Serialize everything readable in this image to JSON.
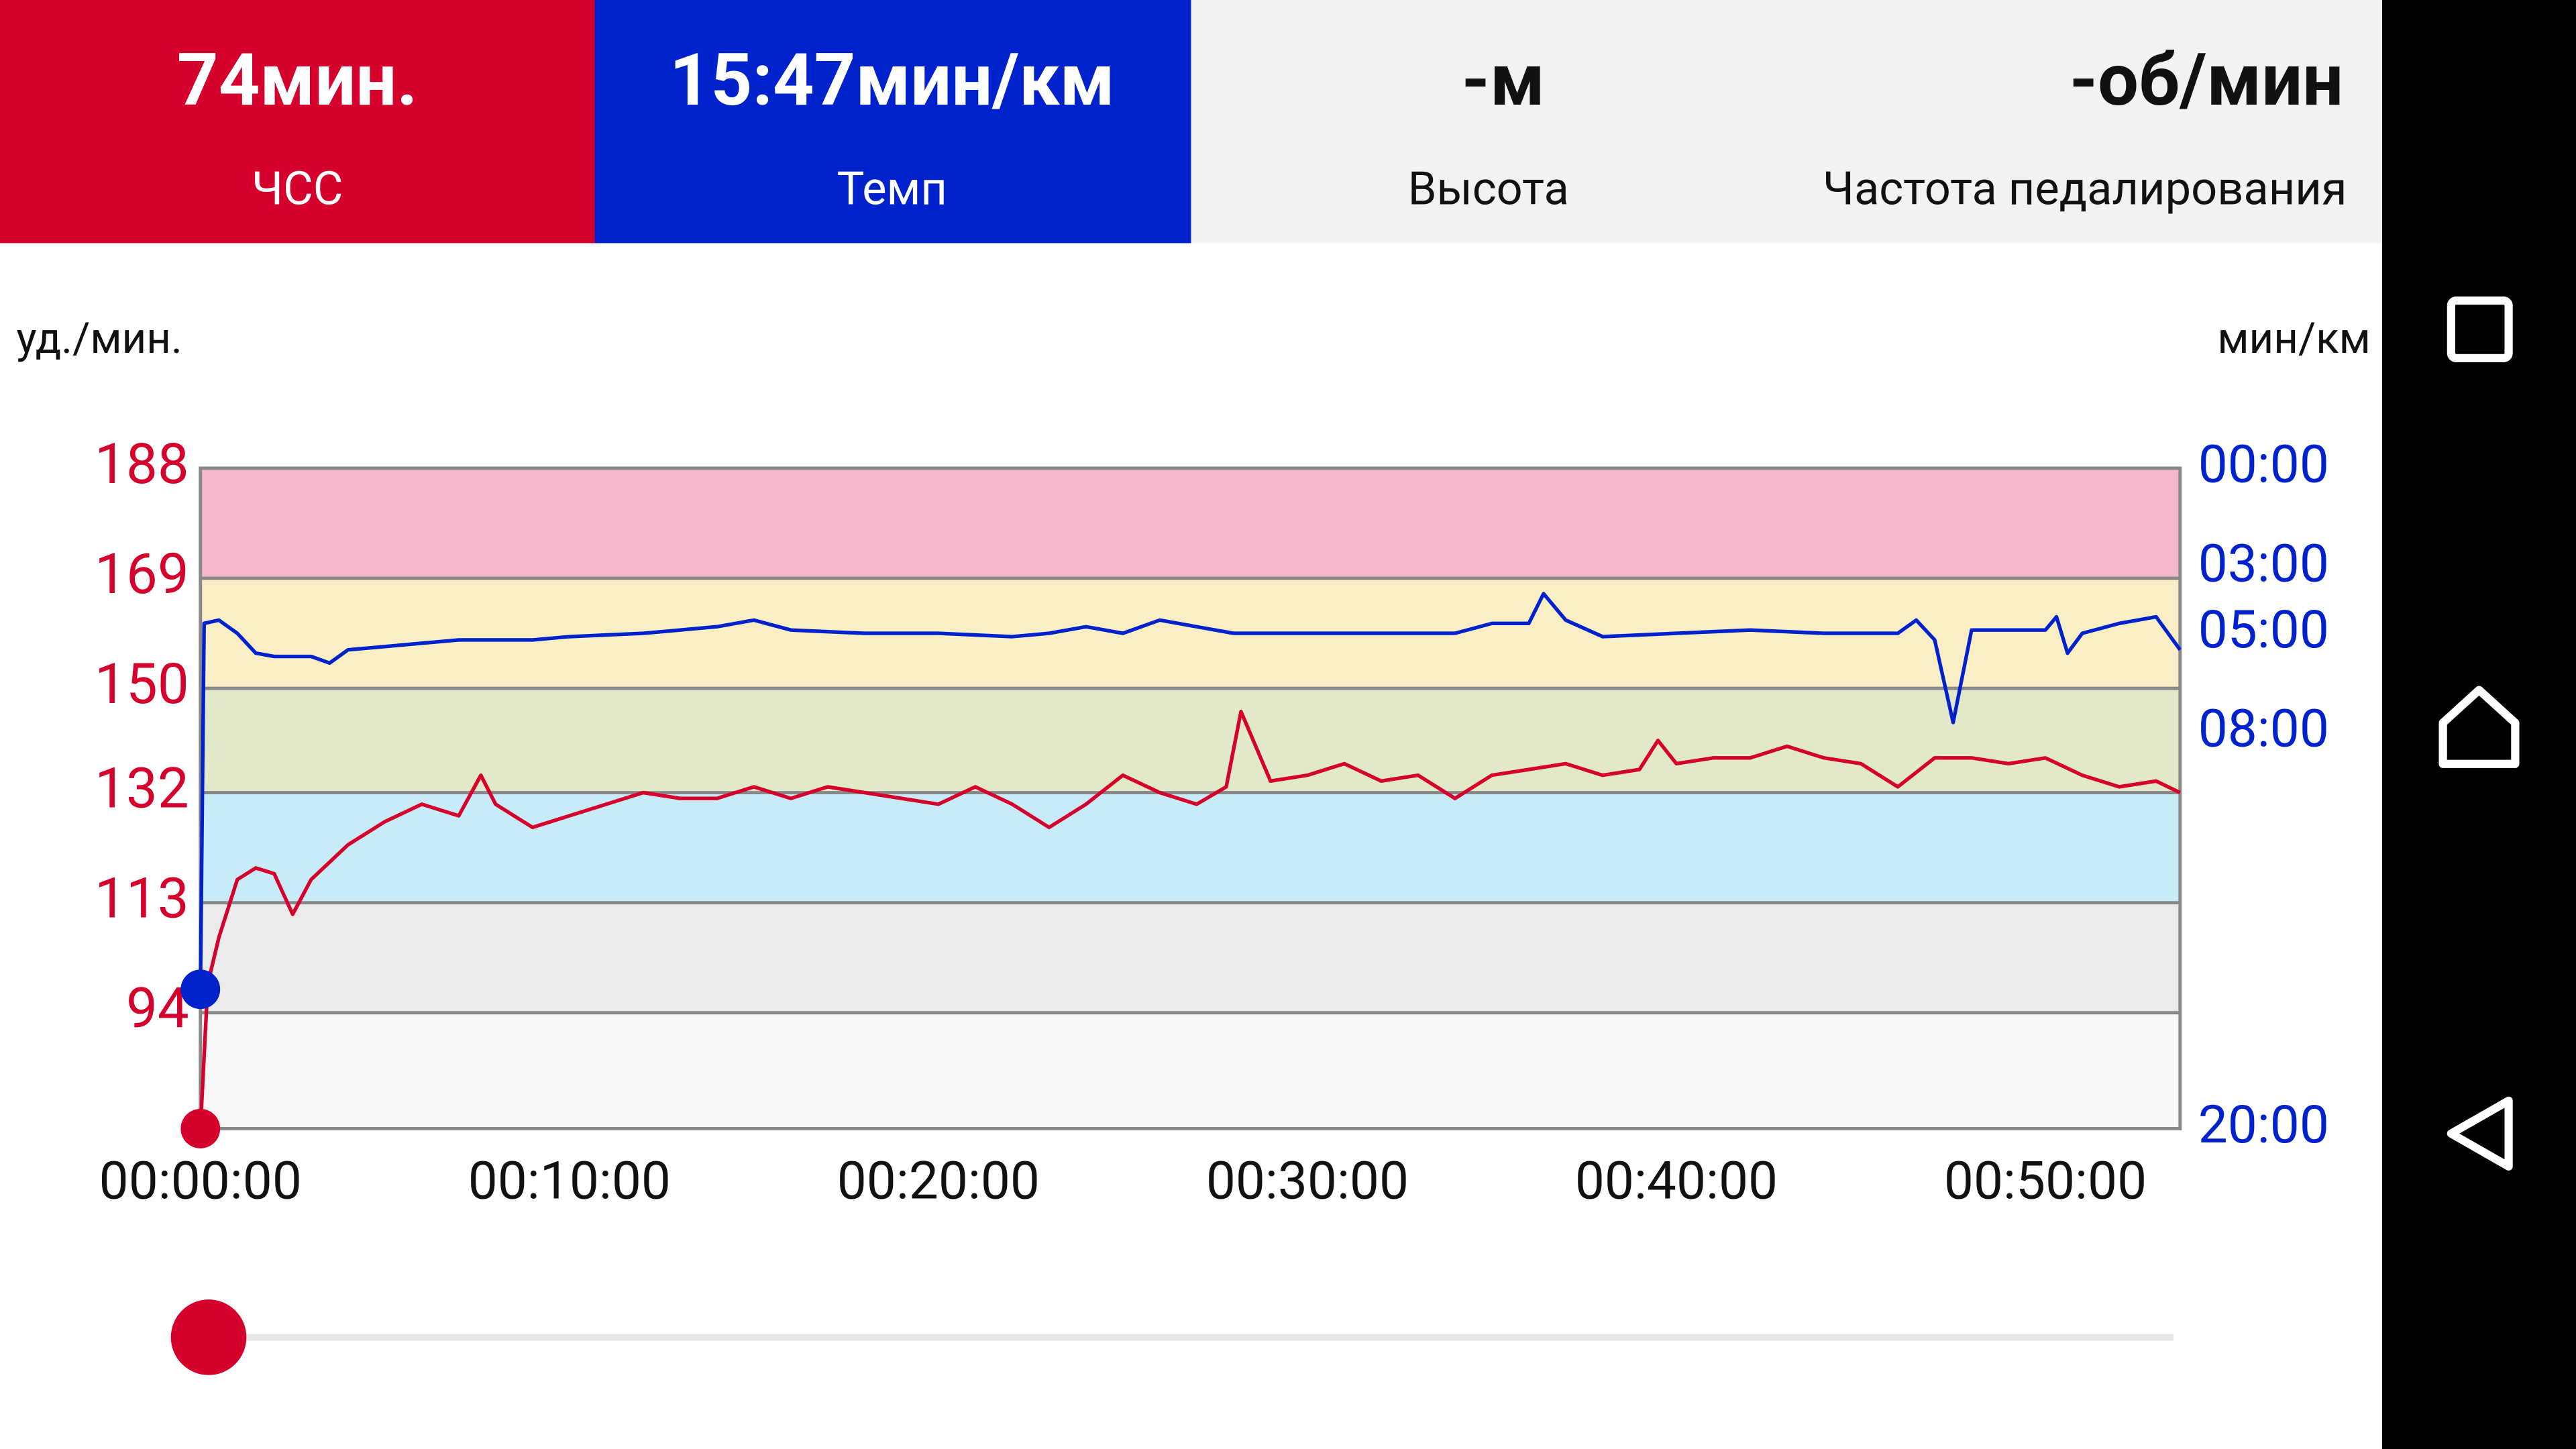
{
  "header": {
    "tiles": [
      {
        "value": "74мин.",
        "label": "ЧСС",
        "color": "#d5002b",
        "text_color": "#ffffff"
      },
      {
        "value": "15:47мин/км",
        "label": "Темп",
        "color": "#0022cc",
        "text_color": "#ffffff"
      },
      {
        "value": "-м",
        "label": "Высота",
        "color": "#f2f2f2",
        "text_color": "#111111"
      },
      {
        "value": "-об/мин",
        "label": "Частота педалирования",
        "color": "#f2f2f2",
        "text_color": "#111111"
      }
    ]
  },
  "chart_data": {
    "type": "line",
    "y_label": "уд./мин.",
    "y2_label": "мин/км",
    "xlim": [
      0,
      53.65
    ],
    "xticks": [
      {
        "value": 0,
        "label": "00:00:00"
      },
      {
        "value": 10,
        "label": "00:10:00"
      },
      {
        "value": 20,
        "label": "00:20:00"
      },
      {
        "value": 30,
        "label": "00:30:00"
      },
      {
        "value": 40,
        "label": "00:40:00"
      },
      {
        "value": 50,
        "label": "00:50:00"
      }
    ],
    "ylim": [
      74,
      188
    ],
    "yticks": [
      94,
      113,
      132,
      150,
      169,
      188
    ],
    "y2lim": [
      20,
      0
    ],
    "y2ticks": [
      {
        "value": 0,
        "label": "00:00"
      },
      {
        "value": 3,
        "label": "03:00"
      },
      {
        "value": 5,
        "label": "05:00"
      },
      {
        "value": 8,
        "label": "08:00"
      },
      {
        "value": 20,
        "label": "20:00"
      }
    ],
    "zones": [
      {
        "from": 74,
        "to": 94,
        "color": "#f7f7f7"
      },
      {
        "from": 94,
        "to": 113,
        "color": "#ebebeb"
      },
      {
        "from": 113,
        "to": 132,
        "color": "#c8ecf7"
      },
      {
        "from": 132,
        "to": 150,
        "color": "#e2e9c8"
      },
      {
        "from": 150,
        "to": 169,
        "color": "#faeec4"
      },
      {
        "from": 169,
        "to": 188,
        "color": "#f4b7cc"
      }
    ],
    "grid": true,
    "series": [
      {
        "name": "ЧСС",
        "color": "#d5002b",
        "axis": "y",
        "x": [
          0,
          0.2,
          0.5,
          1,
          1.5,
          2,
          2.5,
          3,
          4,
          5,
          6,
          7,
          7.6,
          8,
          9,
          10,
          11,
          12,
          13,
          14,
          15,
          16,
          17,
          18,
          19,
          20,
          21,
          22,
          23,
          24,
          25,
          26,
          27,
          27.8,
          28.2,
          29,
          30,
          31,
          32,
          33,
          34,
          35,
          36,
          37,
          38,
          39,
          39.5,
          40,
          41,
          42,
          43,
          44,
          45,
          46,
          47,
          48,
          49,
          50,
          51,
          52,
          53,
          53.65
        ],
        "values": [
          74,
          99,
          107,
          117,
          119,
          118,
          111,
          117,
          123,
          127,
          130,
          128,
          135,
          130,
          126,
          128,
          130,
          132,
          131,
          131,
          133,
          131,
          133,
          132,
          131,
          130,
          133,
          130,
          126,
          130,
          135,
          132,
          130,
          133,
          146,
          134,
          135,
          137,
          134,
          135,
          131,
          135,
          136,
          137,
          135,
          136,
          141,
          137,
          138,
          138,
          140,
          138,
          137,
          133,
          138,
          138,
          137,
          138,
          135,
          133,
          134,
          132
        ]
      },
      {
        "name": "Темп",
        "color": "#0022cc",
        "axis": "y2",
        "x": [
          0,
          0.1,
          0.5,
          1,
          1.5,
          2,
          3,
          3.5,
          4,
          5,
          6,
          7,
          8,
          9,
          10,
          12,
          13,
          14,
          15,
          16,
          18,
          20,
          22,
          23,
          24,
          25,
          26,
          27,
          28,
          30,
          32,
          34,
          35,
          36,
          36.4,
          37,
          38,
          40,
          42,
          44,
          46,
          46.5,
          47,
          47.5,
          48,
          49,
          50,
          50.3,
          50.6,
          51,
          52,
          53,
          53.65
        ],
        "values": [
          15.78,
          4.7,
          4.6,
          5.0,
          5.6,
          5.7,
          5.7,
          5.9,
          5.5,
          5.4,
          5.3,
          5.2,
          5.2,
          5.2,
          5.1,
          5.0,
          4.9,
          4.8,
          4.6,
          4.9,
          5.0,
          5.0,
          5.1,
          5.0,
          4.8,
          5.0,
          4.6,
          4.8,
          5.0,
          5.0,
          5.0,
          5.0,
          4.7,
          4.7,
          3.8,
          4.6,
          5.1,
          5.0,
          4.9,
          5.0,
          5.0,
          4.6,
          5.2,
          7.7,
          4.9,
          4.9,
          4.9,
          4.5,
          5.6,
          5.0,
          4.7,
          4.5,
          5.5
        ]
      }
    ]
  }
}
